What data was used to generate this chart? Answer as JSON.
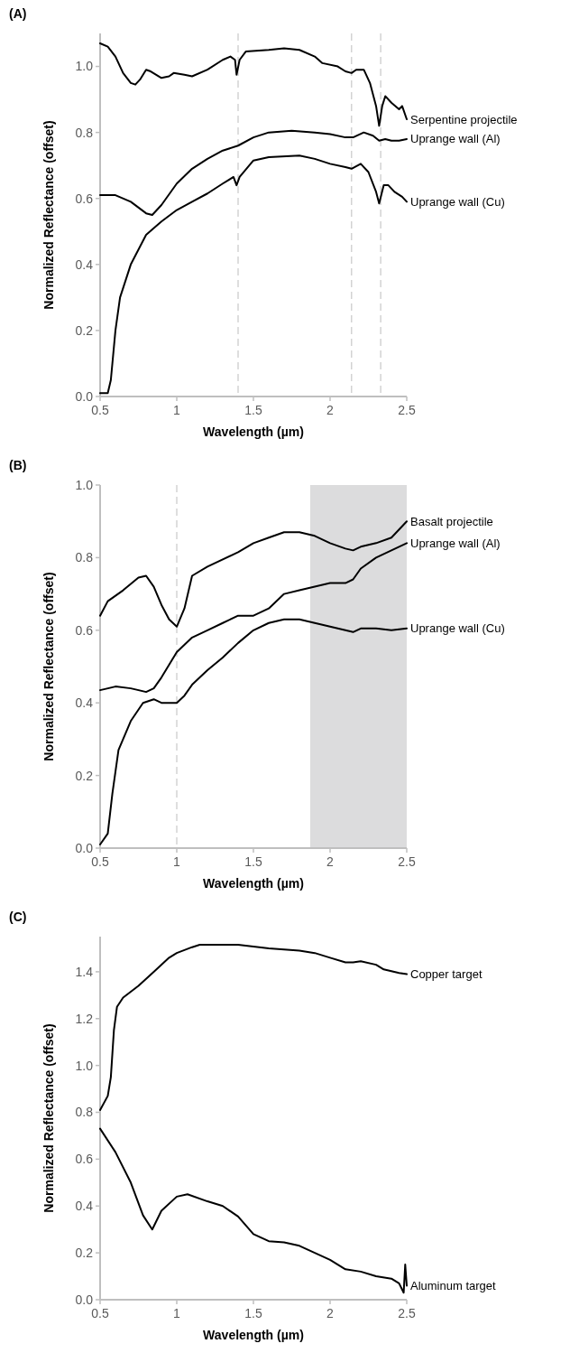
{
  "chart_data": [
    {
      "type": "line",
      "title": "(A)",
      "xlabel": "Wavelength (µm)",
      "ylabel": "Normalized Reflectance (offset)",
      "xlim": [
        0.5,
        2.5
      ],
      "xticks": [
        0.5,
        1,
        1.5,
        2,
        2.5
      ],
      "ylim": [
        0,
        1.1
      ],
      "yticks": [
        {
          "value": 0,
          "label": "0.0"
        },
        {
          "value": 0.2,
          "label": "0.2"
        },
        {
          "value": 0.4,
          "label": "0.4"
        },
        {
          "value": 0.6,
          "label": "0.6"
        },
        {
          "value": 0.8,
          "label": "0.8"
        },
        {
          "value": 1,
          "label": "1.0"
        }
      ],
      "grid": false,
      "legend": false,
      "marker": "none",
      "line_style": "solid",
      "ref_lines": [
        {
          "axis": "x",
          "value": 1.4,
          "color": "#c8c8c8",
          "line_style": "dashed"
        },
        {
          "axis": "x",
          "value": 2.14,
          "color": "#c8c8c8",
          "line_style": "dashed"
        },
        {
          "axis": "x",
          "value": 2.33,
          "color": "#c8c8c8",
          "line_style": "dashed"
        }
      ],
      "series": [
        {
          "name": "Serpentine projectile",
          "color": "#000000",
          "x": [
            0.5,
            0.55,
            0.6,
            0.65,
            0.7,
            0.73,
            0.76,
            0.8,
            0.83,
            0.9,
            0.95,
            0.98,
            1.05,
            1.1,
            1.2,
            1.3,
            1.35,
            1.38,
            1.39,
            1.41,
            1.45,
            1.6,
            1.7,
            1.8,
            1.9,
            1.95,
            2.05,
            2.1,
            2.14,
            2.17,
            2.22,
            2.26,
            2.3,
            2.32,
            2.34,
            2.36,
            2.4,
            2.45,
            2.47,
            2.5
          ],
          "values": [
            1.07,
            1.06,
            1.03,
            0.98,
            0.95,
            0.945,
            0.96,
            0.99,
            0.985,
            0.965,
            0.97,
            0.98,
            0.975,
            0.97,
            0.99,
            1.02,
            1.03,
            1.02,
            0.975,
            1.02,
            1.045,
            1.05,
            1.055,
            1.05,
            1.03,
            1.01,
            1.0,
            0.985,
            0.98,
            0.99,
            0.99,
            0.95,
            0.88,
            0.82,
            0.88,
            0.91,
            0.89,
            0.87,
            0.88,
            0.84
          ]
        },
        {
          "name": "Uprange wall (Al)",
          "color": "#000000",
          "x": [
            0.5,
            0.6,
            0.7,
            0.8,
            0.84,
            0.9,
            1.0,
            1.1,
            1.2,
            1.3,
            1.4,
            1.5,
            1.6,
            1.75,
            1.9,
            2.0,
            2.1,
            2.15,
            2.22,
            2.28,
            2.32,
            2.36,
            2.4,
            2.45,
            2.5
          ],
          "values": [
            0.61,
            0.61,
            0.59,
            0.555,
            0.55,
            0.58,
            0.645,
            0.69,
            0.72,
            0.745,
            0.76,
            0.785,
            0.8,
            0.805,
            0.8,
            0.795,
            0.785,
            0.785,
            0.8,
            0.79,
            0.775,
            0.78,
            0.775,
            0.775,
            0.78
          ]
        },
        {
          "name": "Uprange wall (Cu)",
          "color": "#000000",
          "x": [
            0.5,
            0.55,
            0.57,
            0.6,
            0.63,
            0.7,
            0.8,
            0.9,
            1.0,
            1.1,
            1.2,
            1.3,
            1.37,
            1.39,
            1.41,
            1.5,
            1.6,
            1.8,
            1.9,
            2.0,
            2.1,
            2.14,
            2.2,
            2.25,
            2.3,
            2.32,
            2.35,
            2.38,
            2.42,
            2.47,
            2.5
          ],
          "values": [
            0.01,
            0.01,
            0.05,
            0.2,
            0.3,
            0.4,
            0.49,
            0.53,
            0.565,
            0.59,
            0.615,
            0.645,
            0.665,
            0.64,
            0.665,
            0.715,
            0.725,
            0.73,
            0.72,
            0.705,
            0.695,
            0.69,
            0.705,
            0.68,
            0.62,
            0.585,
            0.64,
            0.64,
            0.62,
            0.605,
            0.59
          ]
        }
      ]
    },
    {
      "type": "line",
      "title": "(B)",
      "xlabel": "Wavelength (µm)",
      "ylabel": "Normalized Reflectance (offset)",
      "xlim": [
        0.5,
        2.5
      ],
      "xticks": [
        0.5,
        1,
        1.5,
        2,
        2.5
      ],
      "ylim": [
        0,
        1
      ],
      "yticks": [
        {
          "value": 0,
          "label": "0.0"
        },
        {
          "value": 0.2,
          "label": "0.2"
        },
        {
          "value": 0.4,
          "label": "0.4"
        },
        {
          "value": 0.6,
          "label": "0.6"
        },
        {
          "value": 0.8,
          "label": "0.8"
        },
        {
          "value": 1,
          "label": "1.0"
        }
      ],
      "grid": false,
      "legend": false,
      "marker": "none",
      "line_style": "solid",
      "ref_lines": [
        {
          "axis": "x",
          "value": 1.0,
          "color": "#c8c8c8",
          "line_style": "dashed"
        }
      ],
      "bands": [
        {
          "axis": "x",
          "from": 1.87,
          "to": 2.5,
          "color": "#dcdcdd"
        }
      ],
      "series": [
        {
          "name": "Basalt projectile",
          "color": "#000000",
          "x": [
            0.5,
            0.55,
            0.65,
            0.75,
            0.8,
            0.85,
            0.9,
            0.95,
            1.0,
            1.05,
            1.1,
            1.2,
            1.4,
            1.5,
            1.6,
            1.7,
            1.8,
            1.9,
            2.0,
            2.1,
            2.15,
            2.2,
            2.3,
            2.4,
            2.5
          ],
          "values": [
            0.64,
            0.68,
            0.71,
            0.745,
            0.75,
            0.72,
            0.67,
            0.63,
            0.61,
            0.66,
            0.75,
            0.775,
            0.815,
            0.84,
            0.855,
            0.87,
            0.87,
            0.86,
            0.84,
            0.825,
            0.82,
            0.83,
            0.84,
            0.855,
            0.9
          ]
        },
        {
          "name": "Uprange wall (Al)",
          "color": "#000000",
          "x": [
            0.5,
            0.6,
            0.7,
            0.8,
            0.85,
            0.9,
            1.0,
            1.1,
            1.2,
            1.3,
            1.4,
            1.5,
            1.6,
            1.7,
            1.8,
            1.9,
            2.0,
            2.1,
            2.15,
            2.2,
            2.3,
            2.4,
            2.5
          ],
          "values": [
            0.435,
            0.445,
            0.44,
            0.43,
            0.44,
            0.47,
            0.54,
            0.58,
            0.6,
            0.62,
            0.64,
            0.64,
            0.66,
            0.7,
            0.71,
            0.72,
            0.73,
            0.73,
            0.74,
            0.77,
            0.8,
            0.82,
            0.84
          ]
        },
        {
          "name": "Uprange wall (Cu)",
          "color": "#000000",
          "x": [
            0.5,
            0.55,
            0.58,
            0.62,
            0.7,
            0.78,
            0.85,
            0.9,
            1.0,
            1.05,
            1.1,
            1.2,
            1.3,
            1.4,
            1.5,
            1.6,
            1.7,
            1.8,
            1.9,
            2.0,
            2.1,
            2.15,
            2.2,
            2.3,
            2.4,
            2.5
          ],
          "values": [
            0.01,
            0.04,
            0.15,
            0.27,
            0.35,
            0.4,
            0.41,
            0.4,
            0.4,
            0.42,
            0.45,
            0.49,
            0.525,
            0.565,
            0.6,
            0.62,
            0.63,
            0.63,
            0.62,
            0.61,
            0.6,
            0.595,
            0.605,
            0.605,
            0.6,
            0.605
          ]
        }
      ]
    },
    {
      "type": "line",
      "title": "(C)",
      "xlabel": "Wavelength (µm)",
      "ylabel": "Normalized Reflectance (offset)",
      "xlim": [
        0.5,
        2.5
      ],
      "xticks": [
        0.5,
        1,
        1.5,
        2,
        2.5
      ],
      "ylim": [
        0,
        1.55
      ],
      "yticks": [
        {
          "value": 0,
          "label": "0.0"
        },
        {
          "value": 0.2,
          "label": "0.2"
        },
        {
          "value": 0.4,
          "label": "0.4"
        },
        {
          "value": 0.6,
          "label": "0.6"
        },
        {
          "value": 0.8,
          "label": "0.8"
        },
        {
          "value": 1,
          "label": "1.0"
        },
        {
          "value": 1.2,
          "label": "1.2"
        },
        {
          "value": 1.4,
          "label": "1.4"
        }
      ],
      "grid": false,
      "legend": false,
      "marker": "none",
      "line_style": "solid",
      "series": [
        {
          "name": "Copper target",
          "color": "#000000",
          "x": [
            0.5,
            0.55,
            0.57,
            0.59,
            0.61,
            0.65,
            0.75,
            0.85,
            0.95,
            1.0,
            1.1,
            1.15,
            1.4,
            1.6,
            1.8,
            1.9,
            2.0,
            2.1,
            2.15,
            2.2,
            2.3,
            2.35,
            2.45,
            2.5
          ],
          "values": [
            0.81,
            0.87,
            0.95,
            1.15,
            1.25,
            1.29,
            1.34,
            1.4,
            1.46,
            1.48,
            1.505,
            1.515,
            1.515,
            1.5,
            1.49,
            1.48,
            1.46,
            1.44,
            1.44,
            1.445,
            1.43,
            1.41,
            1.395,
            1.39
          ]
        },
        {
          "name": "Aluminum target",
          "color": "#000000",
          "x": [
            0.5,
            0.6,
            0.7,
            0.78,
            0.84,
            0.9,
            1.0,
            1.07,
            1.2,
            1.3,
            1.4,
            1.5,
            1.6,
            1.7,
            1.8,
            1.9,
            2.0,
            2.1,
            2.2,
            2.3,
            2.4,
            2.45,
            2.48,
            2.49,
            2.5
          ],
          "values": [
            0.73,
            0.63,
            0.5,
            0.36,
            0.3,
            0.38,
            0.44,
            0.45,
            0.42,
            0.4,
            0.355,
            0.28,
            0.25,
            0.245,
            0.23,
            0.2,
            0.17,
            0.13,
            0.12,
            0.1,
            0.09,
            0.07,
            0.03,
            0.15,
            0.06
          ]
        }
      ]
    }
  ]
}
